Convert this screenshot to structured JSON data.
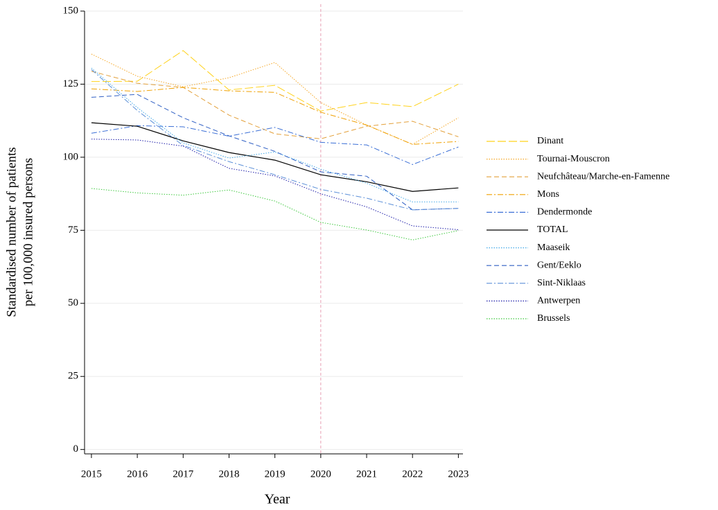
{
  "chart_data": {
    "type": "line",
    "xlabel": "Year",
    "ylabel": [
      "Standardised number of patients",
      "per 100,000 insured persons"
    ],
    "x": [
      2015,
      2016,
      2017,
      2018,
      2019,
      2020,
      2021,
      2022,
      2023
    ],
    "xlim": [
      2014.85,
      2023.1
    ],
    "xticks": [
      2015,
      2016,
      2017,
      2018,
      2019,
      2020,
      2021,
      2022,
      2023
    ],
    "ylim": [
      -1.5,
      150
    ],
    "yticks": [
      0,
      25,
      50,
      75,
      100,
      125,
      150
    ],
    "grid": true,
    "vline": 2020,
    "legend": "right",
    "series": [
      {
        "name": "Dinant",
        "color": "#ffd21a",
        "style": "longdash",
        "values": [
          125.9,
          126,
          136.5,
          123,
          124.6,
          115.8,
          118.7,
          117.3,
          125
        ]
      },
      {
        "name": "Tournai-Mouscron",
        "color": "#f5a623",
        "style": "dotted",
        "values": [
          135.3,
          127.7,
          124.1,
          127.2,
          132.4,
          118.7,
          111,
          104.4,
          113.5
        ]
      },
      {
        "name": "Neufchâteau/Marche-en-Famenne",
        "color": "#e3a03a",
        "style": "dashed",
        "values": [
          129.4,
          125.3,
          123.9,
          114.4,
          108,
          106.3,
          110.6,
          112.3,
          107
        ]
      },
      {
        "name": "Mons",
        "color": "#f0a000",
        "style": "dashdot",
        "values": [
          123.4,
          122.5,
          123.9,
          122.7,
          122.2,
          115.4,
          111,
          104.4,
          105.4
        ]
      },
      {
        "name": "Dendermonde",
        "color": "#3b6fd6",
        "style": "dashdot",
        "values": [
          108.2,
          110.8,
          110.4,
          107.2,
          110.2,
          105.1,
          104.2,
          97.5,
          103.5
        ]
      },
      {
        "name": "TOTAL",
        "color": "#000000",
        "style": "solid",
        "values": [
          111.8,
          110.6,
          105.6,
          101.6,
          99,
          94,
          91.6,
          88.3,
          89.5
        ]
      },
      {
        "name": "Maaseik",
        "color": "#41a8e8",
        "style": "dotted",
        "values": [
          130.5,
          117,
          104.9,
          99.7,
          101.8,
          95.9,
          91.1,
          84.7,
          84.7
        ]
      },
      {
        "name": "Gent/Eeklo",
        "color": "#2f5fc4",
        "style": "dashed",
        "values": [
          120.5,
          121.5,
          113.5,
          107.3,
          102,
          95,
          93.5,
          82,
          82.5
        ]
      },
      {
        "name": "Sint-Niklaas",
        "color": "#5b8fd8",
        "style": "dashdot",
        "values": [
          130,
          116,
          104,
          98.5,
          94,
          89,
          86,
          82,
          82.5
        ]
      },
      {
        "name": "Antwerpen",
        "color": "#1a1aa8",
        "style": "dotted",
        "values": [
          106.2,
          105.9,
          103.8,
          96.2,
          93.6,
          87.5,
          83,
          76.5,
          75.2
        ]
      },
      {
        "name": "Brussels",
        "color": "#3cc83c",
        "style": "dotted",
        "values": [
          89.3,
          87.8,
          87,
          88.8,
          85,
          77.7,
          75.1,
          71.7,
          74.9
        ]
      }
    ]
  }
}
